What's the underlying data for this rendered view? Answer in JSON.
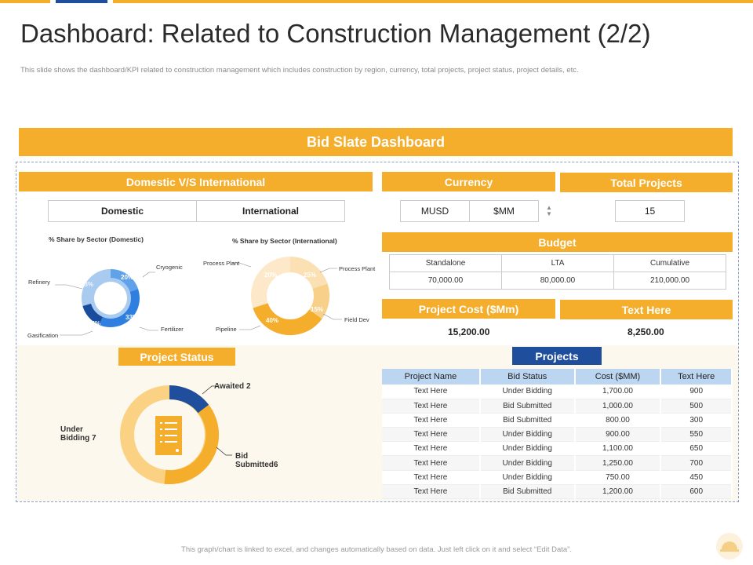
{
  "header": {
    "title": "Dashboard: Related to Construction Management (2/2)",
    "subtitle": "This slide shows the dashboard/KPI related to construction management which includes construction by region, currency, total projects, project status, project details, etc."
  },
  "banner": "Bid Slate Dashboard",
  "domestic_intl": {
    "header": "Domestic V/S International",
    "options": [
      "Domestic",
      "International"
    ],
    "domestic_chart": {
      "caption": "% Share by Sector (Domestic)",
      "slices": [
        {
          "label": "Cryogenic",
          "pct": "20%"
        },
        {
          "label": "Fertilizer",
          "pct": "33%"
        },
        {
          "label": "Gasification",
          "pct": "14%"
        },
        {
          "label": "Refinery",
          "pct": "33%"
        }
      ]
    },
    "intl_chart": {
      "caption": "% Share by Sector (International)",
      "slices": [
        {
          "label": "Process Plant",
          "pct": "25%"
        },
        {
          "label": "Field Dev",
          "pct": "15%"
        },
        {
          "label": "Pipeline",
          "pct": "40%"
        },
        {
          "label": "Process Plant",
          "pct": "20%"
        }
      ]
    }
  },
  "currency": {
    "header": "Currency",
    "options": [
      "MUSD",
      "$MM"
    ]
  },
  "total_projects": {
    "header": "Total Projects",
    "value": "15"
  },
  "budget": {
    "header": "Budget",
    "columns": [
      "Standalone",
      "LTA",
      "Cumulative"
    ],
    "values": [
      "70,000.00",
      "80,000.00",
      "210,000.00"
    ]
  },
  "project_cost": {
    "header": "Project Cost ($Mm)",
    "value": "15,200.00"
  },
  "text_here": {
    "header": "Text Here",
    "value": "8,250.00"
  },
  "project_status": {
    "header": "Project Status",
    "awaited": "Awaited 2",
    "under_bidding": "Under\nBidding 7",
    "bid_submitted": "Bid\nSubmitted6",
    "values": {
      "awaited": 2,
      "under_bidding": 7,
      "bid_submitted": 6
    }
  },
  "projects": {
    "header": "Projects",
    "columns": [
      "Project Name",
      "Bid Status",
      "Cost ($MM)",
      "Text Here"
    ],
    "rows": [
      [
        "Text Here",
        "Under Bidding",
        "1,700.00",
        "900"
      ],
      [
        "Text Here",
        "Bid Submitted",
        "1,000.00",
        "500"
      ],
      [
        "Text Here",
        "Bid Submitted",
        "800.00",
        "300"
      ],
      [
        "Text Here",
        "Under Bidding",
        "900.00",
        "550"
      ],
      [
        "Text Here",
        "Under Bidding",
        "1,100.00",
        "650"
      ],
      [
        "Text Here",
        "Under Bidding",
        "1,250.00",
        "700"
      ],
      [
        "Text Here",
        "Under Bidding",
        "750.00",
        "450"
      ],
      [
        "Text Here",
        "Bid Submitted",
        "1,200.00",
        "600"
      ]
    ]
  },
  "footer": "This graph/chart is linked to excel, and changes automatically based on data. Just left click on it and select “Edit Data”.",
  "colors": {
    "accent": "#f4ae2c",
    "navy": "#1f4e9c",
    "lightblue": "#bcd6f2"
  }
}
